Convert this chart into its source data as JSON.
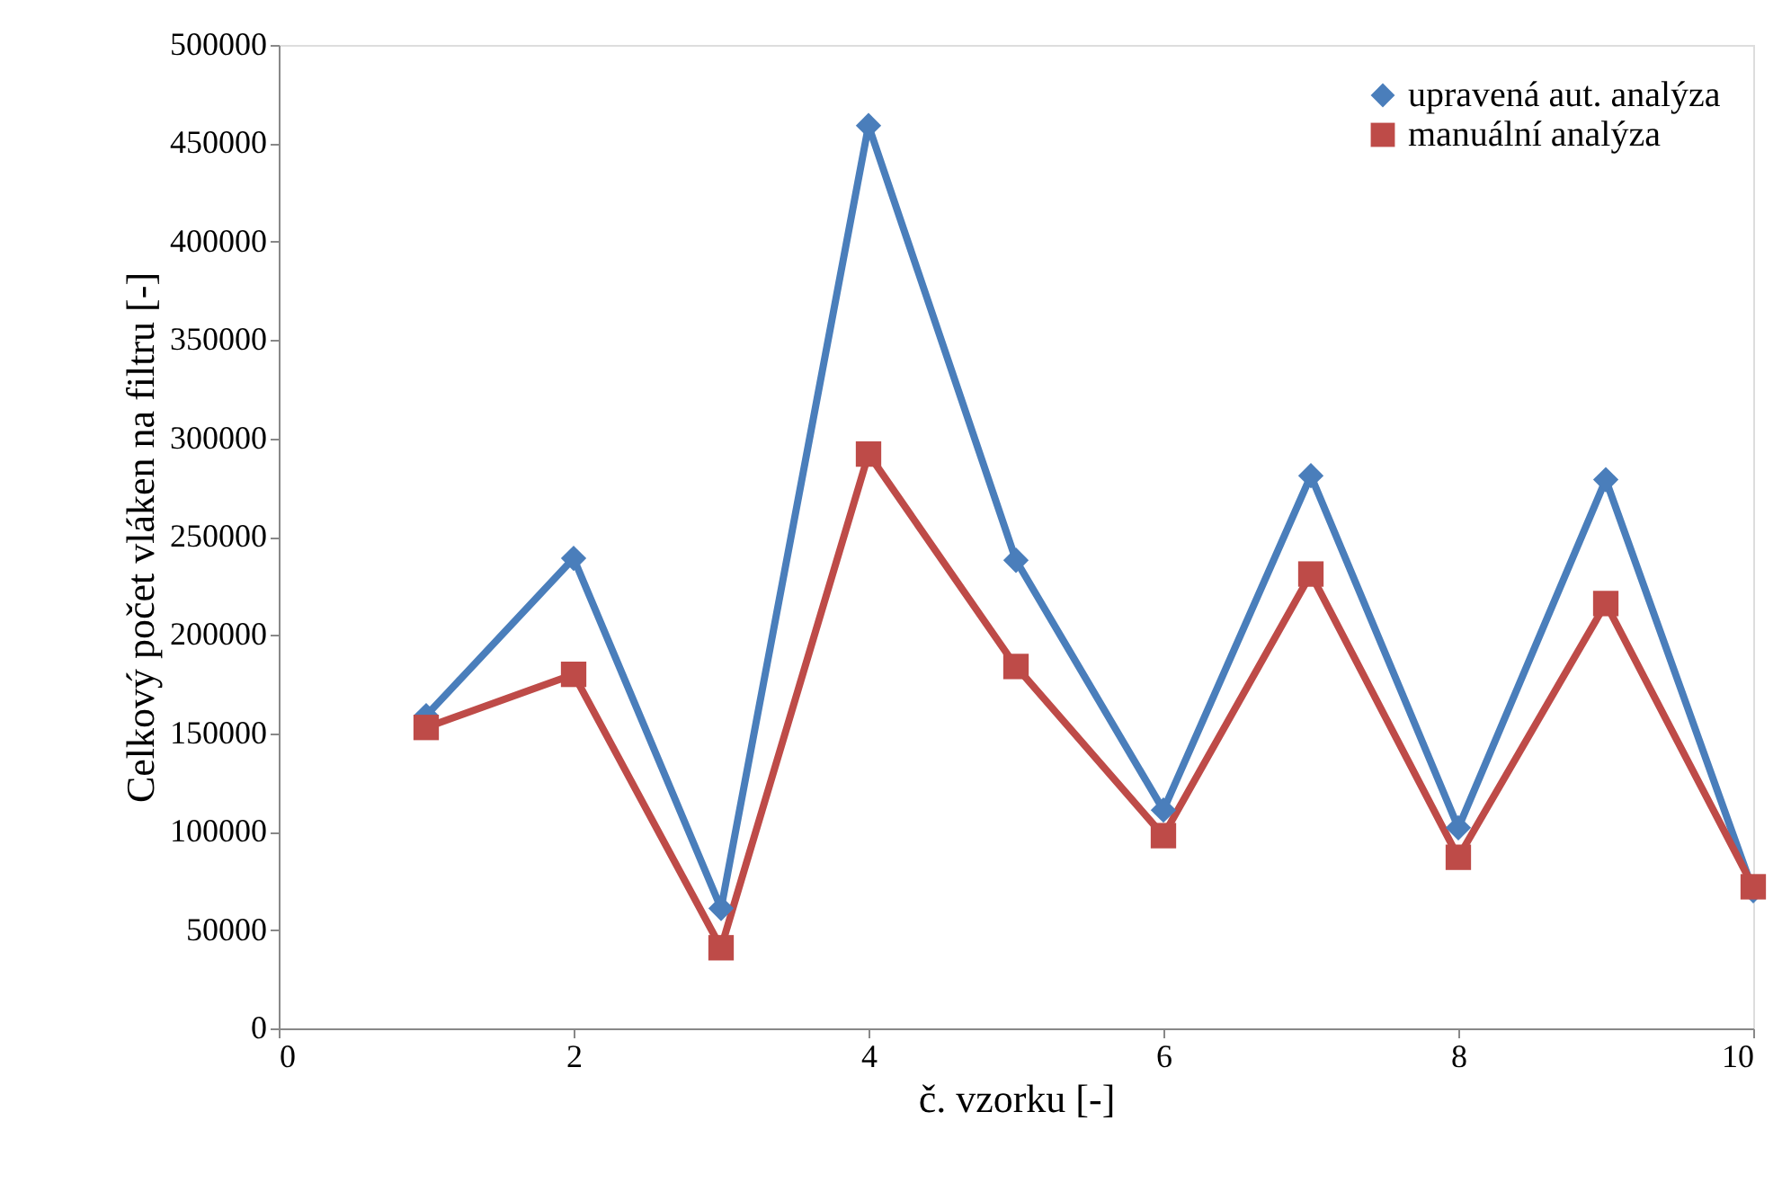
{
  "chart_data": {
    "type": "line",
    "xlabel": "č. vzorku [-]",
    "ylabel": "Celkový počet vláken na filtru [-]",
    "x": [
      1,
      2,
      3,
      4,
      5,
      6,
      7,
      8,
      9,
      10
    ],
    "series": [
      {
        "name": "upravená aut. analýza",
        "color": "#4a7ebb",
        "marker": "diamond",
        "values": [
          159000,
          239000,
          61000,
          459000,
          238000,
          111000,
          281000,
          102000,
          279000,
          70000
        ]
      },
      {
        "name": "manuální analýza",
        "color": "#be4b48",
        "marker": "square",
        "values": [
          153000,
          180000,
          41000,
          292000,
          184000,
          98000,
          231000,
          87000,
          216000,
          72000
        ]
      }
    ],
    "xlim": [
      0,
      10
    ],
    "xticks": [
      0,
      2,
      4,
      6,
      8,
      10
    ],
    "ylim": [
      0,
      500000
    ],
    "yticks": [
      0,
      50000,
      100000,
      150000,
      200000,
      250000,
      300000,
      350000,
      400000,
      450000,
      500000
    ],
    "grid": false,
    "legend": "top right",
    "line_style": "solid"
  }
}
